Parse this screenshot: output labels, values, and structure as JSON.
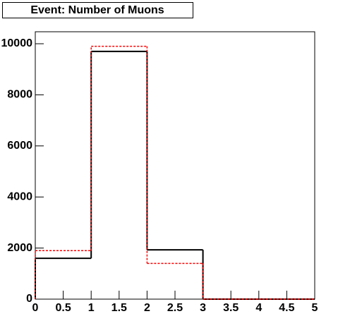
{
  "chart_data": {
    "type": "histogram",
    "title": "Event: Number of Muons",
    "bins": [
      0,
      1,
      2,
      3,
      4,
      5
    ],
    "series": [
      {
        "color": "#000000",
        "line_style": "solid",
        "values": [
          1600,
          9700,
          1930,
          0,
          0
        ]
      },
      {
        "color": "#ff0000",
        "line_style": "dashed",
        "values": [
          1900,
          9900,
          1400,
          0,
          0
        ]
      }
    ],
    "xlim": [
      0,
      5
    ],
    "xticks": [
      0,
      0.5,
      1,
      1.5,
      2,
      2.5,
      3,
      3.5,
      4,
      4.5,
      5
    ],
    "ylim": [
      0,
      10470
    ],
    "yticks": [
      0,
      2000,
      4000,
      6000,
      8000,
      10000
    ],
    "grid": false
  }
}
